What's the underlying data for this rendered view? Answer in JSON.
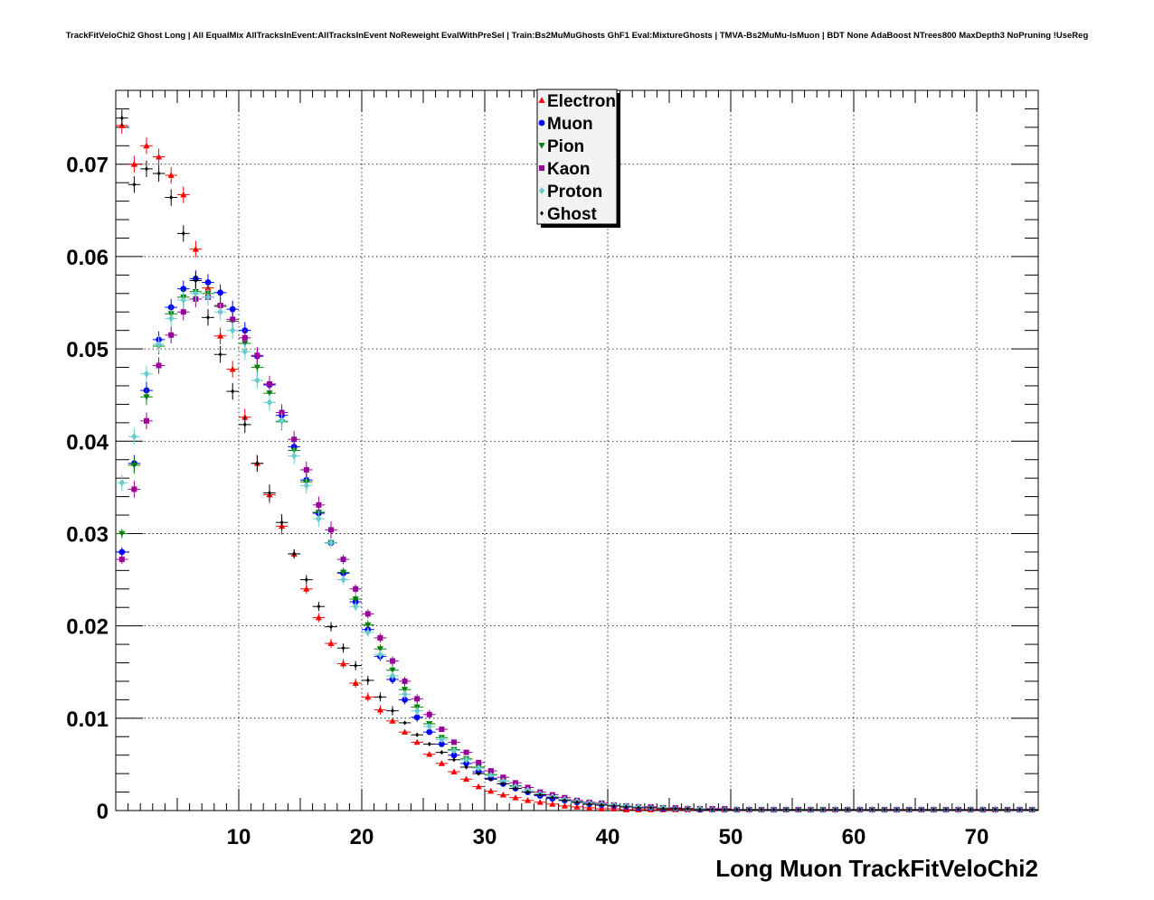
{
  "chart_data": {
    "type": "scatter",
    "title": "TrackFitVeloChi2 Ghost Long | All EqualMix AllTracksInEvent:AllTracksInEvent NoReweight EvalWithPreSel | Train:Bs2MuMuGhosts GhF1 Eval:MixtureGhosts | TMVA-Bs2MuMu-IsMuon | BDT None AdaBoost NTrees800 MaxDepth3 NoPruning !UseReg",
    "xlabel": "Long Muon TrackFitVeloChi2",
    "ylabel": "",
    "xlim": [
      0,
      75
    ],
    "ylim": [
      0,
      0.078
    ],
    "bin_width": 1,
    "x": [
      0.5,
      1.5,
      2.5,
      3.5,
      4.5,
      5.5,
      6.5,
      7.5,
      8.5,
      9.5,
      10.5,
      11.5,
      12.5,
      13.5,
      14.5,
      15.5,
      16.5,
      17.5,
      18.5,
      19.5,
      20.5,
      21.5,
      22.5,
      23.5,
      24.5,
      25.5,
      26.5,
      27.5,
      28.5,
      29.5,
      30.5,
      31.5,
      32.5,
      33.5,
      34.5,
      35.5,
      36.5,
      37.5,
      38.5,
      39.5,
      40.5,
      41.5,
      42.5,
      43.5,
      44.5,
      45.5,
      46.5,
      47.5,
      48.5,
      49.5,
      50.5,
      51.5,
      52.5,
      53.5,
      54.5,
      55.5,
      56.5,
      57.5,
      58.5,
      59.5,
      60.5,
      61.5,
      62.5,
      63.5,
      64.5,
      65.5,
      66.5,
      67.5,
      68.5,
      69.5,
      70.5,
      71.5,
      72.5,
      73.5,
      74.5
    ],
    "xticks": [
      10,
      20,
      30,
      40,
      50,
      60,
      70
    ],
    "yticks": [
      0,
      0.01,
      0.02,
      0.03,
      0.04,
      0.05,
      0.06,
      0.07
    ],
    "xtick_labels": [
      "10",
      "20",
      "30",
      "40",
      "50",
      "60",
      "70"
    ],
    "ytick_labels": [
      "0",
      "0.01",
      "0.02",
      "0.03",
      "0.04",
      "0.05",
      "0.06",
      "0.07"
    ],
    "grid": true,
    "legend_position": "top-center",
    "series": [
      {
        "name": "Electron",
        "color": "#ff0000",
        "marker": "triangle-up",
        "values": [
          0.0742,
          0.07,
          0.072,
          0.0708,
          0.0688,
          0.0667,
          0.0608,
          0.0566,
          0.0514,
          0.0478,
          0.0426,
          0.0376,
          0.0342,
          0.0308,
          0.0278,
          0.024,
          0.0209,
          0.0181,
          0.0159,
          0.0138,
          0.0123,
          0.0109,
          0.0097,
          0.0085,
          0.0074,
          0.0061,
          0.0051,
          0.0042,
          0.0034,
          0.0026,
          0.0021,
          0.0017,
          0.0014,
          0.0011,
          0.0009,
          0.0007,
          0.0005,
          0.0004,
          0.0003,
          0.0002,
          0.0002,
          0.0001,
          0.0001,
          0.0001,
          0.0001,
          0.0001,
          0.0001,
          0.0001,
          0.0001,
          0.0001,
          0.0001,
          0.0001,
          0.0001,
          0.0001,
          0.0001,
          0.0001,
          0.0001,
          0.0001,
          0.0001,
          0.0001,
          0.0001,
          0.0001,
          0.0001,
          0.0001,
          0.0001,
          0.0001,
          0.0001,
          0.0001,
          0.0001,
          0.0001,
          0.0001,
          0.0001,
          0.0001,
          0.0001,
          0.0001
        ]
      },
      {
        "name": "Muon",
        "color": "#0000ff",
        "marker": "circle",
        "values": [
          0.028,
          0.0376,
          0.0455,
          0.051,
          0.0545,
          0.0565,
          0.0576,
          0.0572,
          0.0561,
          0.0543,
          0.052,
          0.0492,
          0.0461,
          0.0428,
          0.0394,
          0.0358,
          0.0322,
          0.029,
          0.0257,
          0.0226,
          0.0196,
          0.0167,
          0.0142,
          0.012,
          0.0101,
          0.0085,
          0.0072,
          0.006,
          0.0051,
          0.0042,
          0.0035,
          0.0029,
          0.0024,
          0.002,
          0.0016,
          0.0013,
          0.0011,
          0.0009,
          0.0007,
          0.0006,
          0.0005,
          0.0004,
          0.0003,
          0.0003,
          0.0002,
          0.0002,
          0.0002,
          0.0001,
          0.0001,
          0.0001,
          0.0001,
          0.0001,
          0.0001,
          0.0001,
          0.0001,
          0.0001,
          0.0001,
          0.0001,
          0.0001,
          0.0001,
          0.0001,
          0.0001,
          0.0001,
          0.0001,
          0.0001,
          0.0001,
          0.0001,
          0.0001,
          0.0001,
          0.0001,
          0.0001,
          0.0001,
          0.0001,
          0.0001,
          0.0001
        ]
      },
      {
        "name": "Pion",
        "color": "#008000",
        "marker": "triangle-down",
        "values": [
          0.03,
          0.0374,
          0.0448,
          0.0503,
          0.0538,
          0.0556,
          0.0562,
          0.056,
          0.0546,
          0.053,
          0.0506,
          0.048,
          0.0452,
          0.0421,
          0.039,
          0.0356,
          0.0323,
          0.029,
          0.0258,
          0.0229,
          0.0201,
          0.0175,
          0.0152,
          0.0131,
          0.0112,
          0.0094,
          0.0079,
          0.0066,
          0.0056,
          0.0047,
          0.0039,
          0.0032,
          0.0027,
          0.0022,
          0.0018,
          0.0015,
          0.0012,
          0.001,
          0.0008,
          0.0007,
          0.0006,
          0.0005,
          0.0004,
          0.0003,
          0.0003,
          0.0002,
          0.0002,
          0.0002,
          0.0002,
          0.0001,
          0.0001,
          0.0001,
          0.0001,
          0.0001,
          0.0001,
          0.0001,
          0.0001,
          0.0001,
          0.0001,
          0.0001,
          0.0001,
          0.0001,
          0.0001,
          0.0001,
          0.0001,
          0.0001,
          0.0001,
          0.0001,
          0.0001,
          0.0001,
          0.0001,
          0.0001,
          0.0001,
          0.0001,
          0.0001
        ]
      },
      {
        "name": "Kaon",
        "color": "#990099",
        "marker": "square",
        "values": [
          0.0272,
          0.0348,
          0.0422,
          0.0482,
          0.0515,
          0.054,
          0.0554,
          0.0556,
          0.0547,
          0.0532,
          0.0512,
          0.0493,
          0.0462,
          0.0431,
          0.0402,
          0.0369,
          0.0331,
          0.0304,
          0.0272,
          0.024,
          0.0213,
          0.0187,
          0.0162,
          0.014,
          0.0121,
          0.0104,
          0.0088,
          0.0074,
          0.0063,
          0.0052,
          0.0043,
          0.0036,
          0.003,
          0.0025,
          0.002,
          0.0017,
          0.0014,
          0.0011,
          0.0009,
          0.0008,
          0.0006,
          0.0005,
          0.0004,
          0.0004,
          0.0003,
          0.0003,
          0.0002,
          0.0002,
          0.0002,
          0.0002,
          0.0001,
          0.0001,
          0.0001,
          0.0001,
          0.0001,
          0.0001,
          0.0001,
          0.0001,
          0.0001,
          0.0001,
          0.0001,
          0.0001,
          0.0001,
          0.0001,
          0.0001,
          0.0001,
          0.0001,
          0.0001,
          0.0001,
          0.0001,
          0.0001,
          0.0001,
          0.0001,
          0.0001,
          0.0001
        ]
      },
      {
        "name": "Proton",
        "color": "#66cccc",
        "marker": "diamond",
        "values": [
          0.0355,
          0.0405,
          0.0473,
          0.0505,
          0.0533,
          0.0553,
          0.056,
          0.0556,
          0.054,
          0.052,
          0.0497,
          0.0466,
          0.0442,
          0.0422,
          0.0384,
          0.0352,
          0.0316,
          0.029,
          0.025,
          0.0221,
          0.0193,
          0.0169,
          0.0146,
          0.0126,
          0.0108,
          0.0091,
          0.0077,
          0.0065,
          0.0055,
          0.0046,
          0.0038,
          0.0032,
          0.0026,
          0.0022,
          0.0018,
          0.0015,
          0.0012,
          0.001,
          0.0008,
          0.0007,
          0.0006,
          0.0005,
          0.0004,
          0.0003,
          0.0003,
          0.0002,
          0.0002,
          0.0002,
          0.0001,
          0.0001,
          0.0001,
          0.0001,
          0.0001,
          0.0001,
          0.0001,
          0.0001,
          0.0001,
          0.0001,
          0.0001,
          0.0001,
          0.0001,
          0.0001,
          0.0001,
          0.0001,
          0.0001,
          0.0001,
          0.0001,
          0.0001,
          0.0001,
          0.0001,
          0.0001,
          0.0001,
          0.0001,
          0.0001,
          0.0001
        ]
      },
      {
        "name": "Ghost",
        "color": "#000000",
        "marker": "small-diamond",
        "values": [
          0.075,
          0.0678,
          0.0695,
          0.069,
          0.0664,
          0.0625,
          0.0574,
          0.0534,
          0.0494,
          0.0454,
          0.0418,
          0.0376,
          0.0344,
          0.0312,
          0.0278,
          0.025,
          0.0221,
          0.0199,
          0.0176,
          0.0157,
          0.0141,
          0.0123,
          0.0108,
          0.0095,
          0.0082,
          0.0072,
          0.0063,
          0.0055,
          0.0047,
          0.004,
          0.0034,
          0.0029,
          0.0024,
          0.002,
          0.0017,
          0.0014,
          0.0011,
          0.0009,
          0.0007,
          0.0006,
          0.0005,
          0.0004,
          0.0003,
          0.0003,
          0.0002,
          0.0002,
          0.0002,
          0.0001,
          0.0001,
          0.0001,
          0.0001,
          0.0001,
          0.0001,
          0.0001,
          0.0001,
          0.0001,
          0.0001,
          0.0001,
          0.0001,
          0.0001,
          0.0001,
          0.0001,
          0.0001,
          0.0001,
          0.0001,
          0.0001,
          0.0001,
          0.0001,
          0.0001,
          0.0001,
          0.0001,
          0.0001,
          0.0001,
          0.0001,
          0.0001
        ]
      }
    ]
  }
}
